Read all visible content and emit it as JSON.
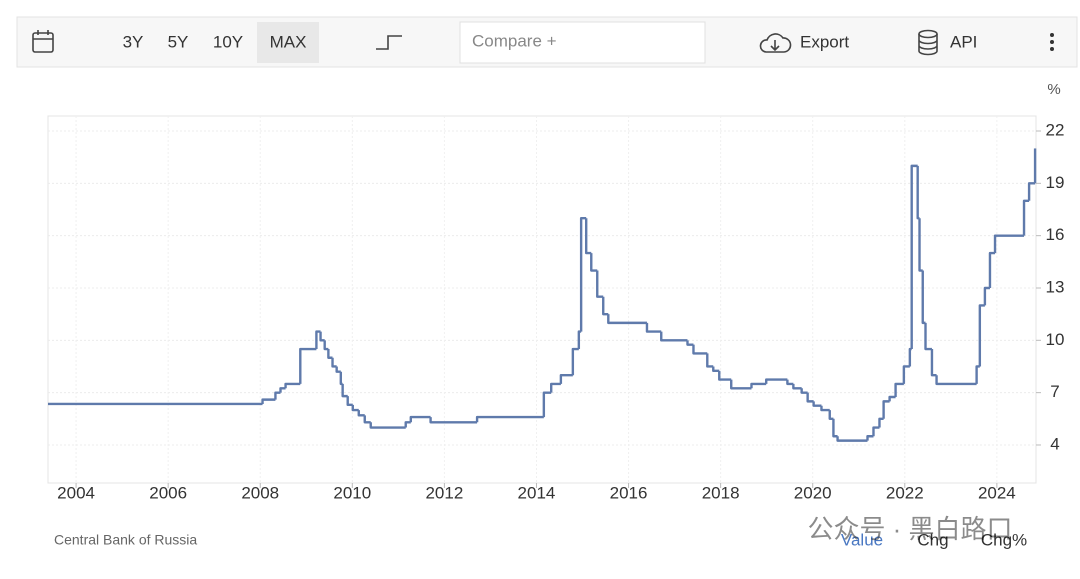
{
  "toolbar": {
    "ranges": [
      "3Y",
      "5Y",
      "10Y",
      "MAX"
    ],
    "compare": "Compare +",
    "export": "Export",
    "api": "API"
  },
  "chart_data": {
    "type": "line",
    "step": true,
    "unit": "%",
    "source": "Central Bank of Russia",
    "color": "#5f7aab",
    "grid": true,
    "x": [
      2003.39,
      2008.05,
      2008.33,
      2008.44,
      2008.55,
      2008.87,
      2009.22,
      2009.31,
      2009.4,
      2009.48,
      2009.57,
      2009.66,
      2009.75,
      2009.79,
      2009.9,
      2010.01,
      2010.14,
      2010.27,
      2010.4,
      2011.16,
      2011.27,
      2011.7,
      2012.71,
      2014.16,
      2014.32,
      2014.53,
      2014.79,
      2014.92,
      2014.97,
      2015.08,
      2015.19,
      2015.32,
      2015.45,
      2015.56,
      2016.4,
      2016.71,
      2017.28,
      2017.41,
      2017.71,
      2017.84,
      2017.97,
      2018.23,
      2018.67,
      2018.99,
      2019.45,
      2019.58,
      2019.76,
      2019.89,
      2020.02,
      2020.19,
      2020.37,
      2020.45,
      2020.54,
      2021.19,
      2021.32,
      2021.45,
      2021.54,
      2021.67,
      2021.8,
      2021.98,
      2022.11,
      2022.15,
      2022.28,
      2022.32,
      2022.39,
      2022.45,
      2022.59,
      2022.69,
      2023.56,
      2023.63,
      2023.74,
      2023.85,
      2023.96,
      2024.59,
      2024.7,
      2024.83
    ],
    "values": [
      6.35,
      6.6,
      7,
      7.25,
      7.5,
      9.5,
      10.5,
      10,
      9.5,
      9,
      8.5,
      8.2,
      7.5,
      6.8,
      6.3,
      6,
      5.7,
      5.3,
      5,
      5.3,
      5.6,
      5.3,
      5.6,
      7,
      7.5,
      8,
      9.5,
      10.5,
      17,
      15,
      14,
      12.5,
      11.5,
      11,
      10.5,
      10,
      9.75,
      9.25,
      8.5,
      8.25,
      7.75,
      7.25,
      7.5,
      7.75,
      7.5,
      7.25,
      7,
      6.5,
      6.25,
      6,
      5.5,
      4.5,
      4.25,
      4.5,
      5,
      5.5,
      6.5,
      6.75,
      7.5,
      8.5,
      9.5,
      20,
      17,
      14,
      11,
      9.5,
      8,
      7.5,
      8.5,
      12,
      13,
      15,
      16,
      18,
      19,
      21
    ],
    "xlim": [
      2003.39,
      2024.85
    ],
    "xticks": [
      2004,
      2006,
      2008,
      2010,
      2012,
      2014,
      2016,
      2018,
      2020,
      2022,
      2024
    ],
    "ylim": [
      1.82,
      22.86
    ],
    "yticks": [
      4,
      7,
      10,
      13,
      16,
      19,
      22
    ]
  },
  "footer": {
    "buttons": [
      "Value",
      "Chg",
      "Chg%"
    ]
  },
  "watermark": "公众号 · 黑白路口"
}
